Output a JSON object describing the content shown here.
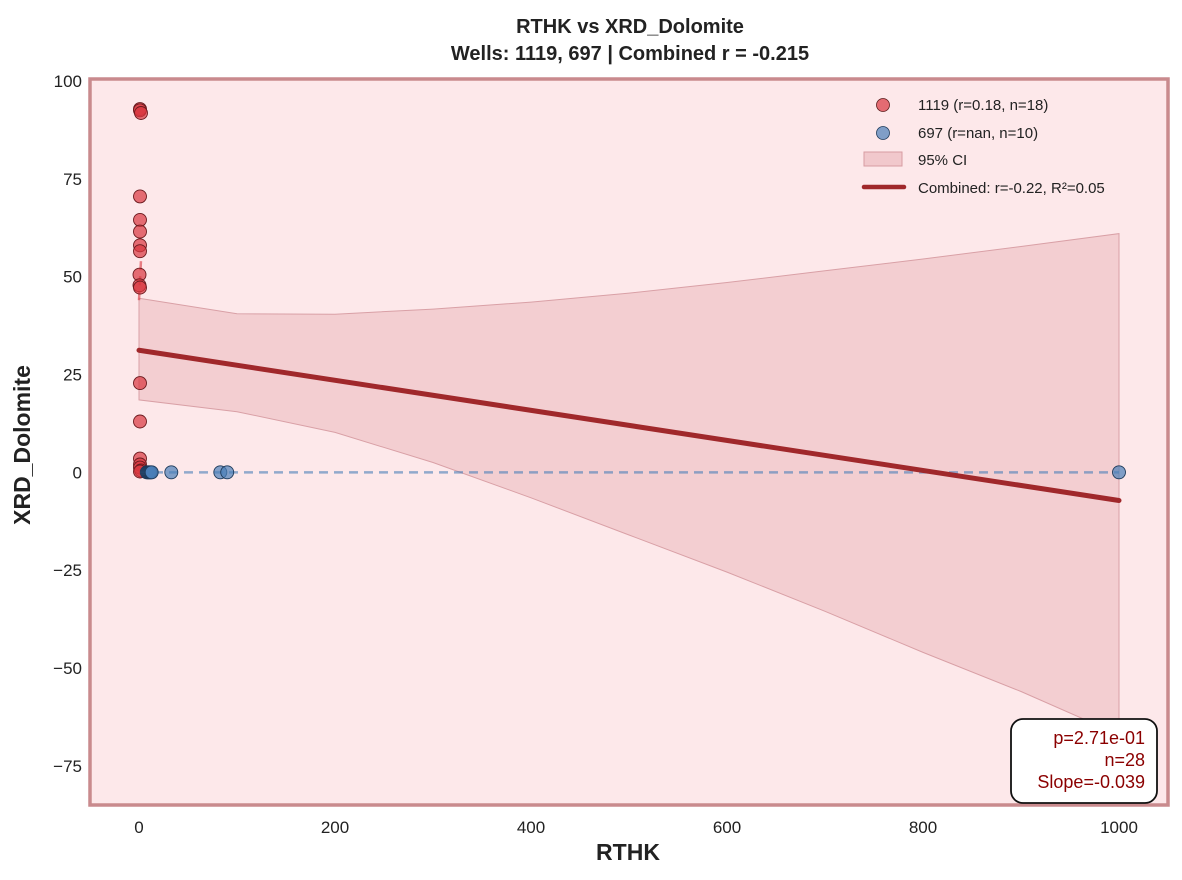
{
  "chart_data": {
    "type": "scatter",
    "title": "RTHK vs XRD_Dolomite",
    "subtitle": "Wells: 1119, 697 | Combined r = -0.215",
    "xlabel": "RTHK",
    "ylabel": "XRD_Dolomite",
    "xlim": [
      -50,
      1050
    ],
    "ylim": [
      -85,
      100.5
    ],
    "xticks": [
      0,
      200,
      400,
      600,
      800,
      1000
    ],
    "yticks": [
      -75,
      -50,
      -25,
      0,
      25,
      50,
      75,
      100
    ],
    "xtick_labels": [
      "0",
      "200",
      "400",
      "600",
      "800",
      "1000"
    ],
    "ytick_labels": [
      "−75",
      "−50",
      "−25",
      "0",
      "25",
      "50",
      "75",
      "100"
    ],
    "grid": false,
    "background_color": "#fde8ea",
    "frame_color": "#c98a8d",
    "series": [
      {
        "name": "1119",
        "legend_label": "1119 (r=0.18, n=18)",
        "color": "#d9363e",
        "x": [
          1,
          1,
          2,
          1,
          1,
          1,
          1,
          1,
          0.5,
          0.5,
          1,
          1,
          1,
          1,
          1,
          1,
          2,
          1
        ],
        "y": [
          92.8,
          92.5,
          91.8,
          70.5,
          64.5,
          61.5,
          58,
          56.5,
          50.5,
          47.8,
          47.2,
          22.8,
          13,
          3.5,
          2,
          1.2,
          0.5,
          0.2
        ],
        "fit_line": {
          "x": [
            0,
            2
          ],
          "y": [
            44,
            54
          ],
          "style": "dashed"
        }
      },
      {
        "name": "697",
        "legend_label": "697 (r=nan, n=10)",
        "color": "#4a7fb8",
        "x": [
          8,
          9,
          10,
          11,
          12,
          13,
          33,
          83,
          90,
          1000
        ],
        "y": [
          0,
          0,
          0,
          0,
          0,
          0,
          0,
          0,
          0,
          0
        ],
        "fit_line": {
          "x": [
            0,
            1000
          ],
          "y": [
            0,
            0
          ],
          "style": "dashed"
        }
      }
    ],
    "combined_fit": {
      "legend_label": "Combined: r=-0.22, R²=0.05",
      "color": "#a0282b",
      "x": [
        0,
        1000
      ],
      "y": [
        31.2,
        -7.2
      ]
    },
    "confidence_band": {
      "legend_label": "95% CI",
      "color": "#e9b3b8",
      "x": [
        0,
        100,
        200,
        300,
        400,
        500,
        600,
        700,
        800,
        900,
        1000
      ],
      "upper": [
        44.5,
        40.5,
        40.4,
        41.7,
        43.5,
        45.8,
        48.5,
        51.5,
        54.5,
        57.7,
        61
      ],
      "lower": [
        18.5,
        15.5,
        10.2,
        2.5,
        -6.5,
        -16,
        -25.5,
        -35.5,
        -46,
        -56,
        -67
      ]
    },
    "legend_position": "top-right",
    "stats_box": {
      "position": "bottom-right",
      "lines": [
        "p=2.71e-01",
        "n=28",
        "Slope=-0.039"
      ],
      "text_color": "#8b0000"
    }
  }
}
